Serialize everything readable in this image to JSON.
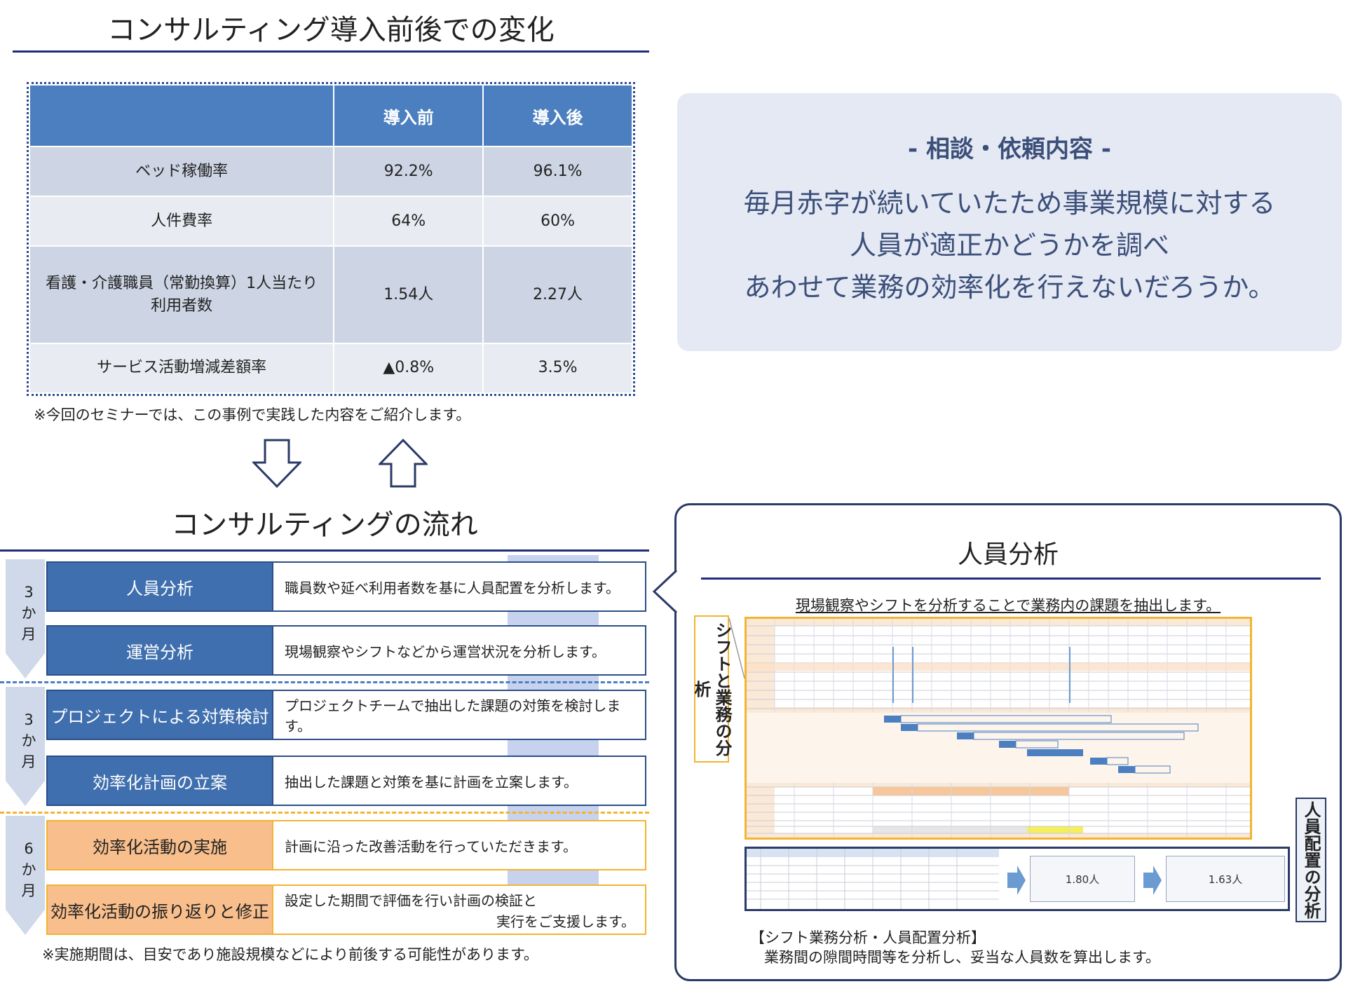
{
  "top_left": {
    "title": "コンサルティング導入前後での変化",
    "table": {
      "headers": [
        "",
        "導入前",
        "導入後"
      ],
      "rows": [
        {
          "label": "ベッド稼働率",
          "label2": "",
          "before": "92.2%",
          "after": "96.1%"
        },
        {
          "label": "人件費率",
          "label2": "",
          "before": "64%",
          "after": "60%"
        },
        {
          "label": "看護・介護職員（常勤換算）1人当たり",
          "label2": "利用者数",
          "before": "1.54人",
          "after": "2.27人"
        },
        {
          "label": "サービス活動増減差額率",
          "label2": "",
          "before": "▲0.8%",
          "after": "3.5%"
        }
      ]
    },
    "note": "※今回のセミナーでは、この事例で実践した内容をご紹介します。"
  },
  "request": {
    "heading": "- 相談・依頼内容 -",
    "lines": [
      "毎月赤字が続いていたため事業規模に対する",
      "人員が適正かどうかを調べ",
      "あわせて業務の効率化を行えないだろうか。"
    ]
  },
  "flow": {
    "title": "コンサルティングの流れ",
    "periods": [
      {
        "num": "3",
        "unit1": "か",
        "unit2": "月"
      },
      {
        "num": "3",
        "unit1": "か",
        "unit2": "月"
      },
      {
        "num": "6",
        "unit1": "か",
        "unit2": "月"
      }
    ],
    "steps": [
      {
        "title": "人員分析",
        "desc": "職員数や延べ利用者数を基に人員配置を分析します。",
        "desc2": ""
      },
      {
        "title": "運営分析",
        "desc": "現場観察やシフトなどから運営状況を分析します。",
        "desc2": ""
      },
      {
        "title": "プロジェクトによる対策検討",
        "desc": "プロジェクトチームで抽出した課題の対策を検討します。",
        "desc2": ""
      },
      {
        "title": "効率化計画の立案",
        "desc": "抽出した課題と対策を基に計画を立案します。",
        "desc2": ""
      },
      {
        "title": "効率化活動の実施",
        "desc": "計画に沿った改善活動を行っていただきます。",
        "desc2": ""
      },
      {
        "title": "効率化活動の振り返りと修正",
        "desc": "設定した期間で評価を行い計画の検証と",
        "desc2": "実行をご支援します。"
      }
    ],
    "note": "※実施期間は、目安であり施設規模などにより前後する可能性があります。"
  },
  "analysis": {
    "title": "人員分析",
    "subtitle": "現場観察やシフトを分析することで業務内の課題を抽出します。",
    "left_label": "シフトと業務の分析",
    "right_label": "人員配置の分析",
    "result_before": "1.80人",
    "result_after": "1.63人",
    "caption_title": "【シフト業務分析・人員配置分析】",
    "caption_body": "業務間の隙間時間等を分析し、妥当な人員数を算出します。"
  },
  "colors": {
    "navy": "#1f2c7a",
    "header_blue": "#4b7fbf",
    "step_blue": "#3f6fae",
    "step_orange": "#f8be8c",
    "accent_yellow": "#f2b431",
    "request_bg": "#e4e9f3"
  }
}
